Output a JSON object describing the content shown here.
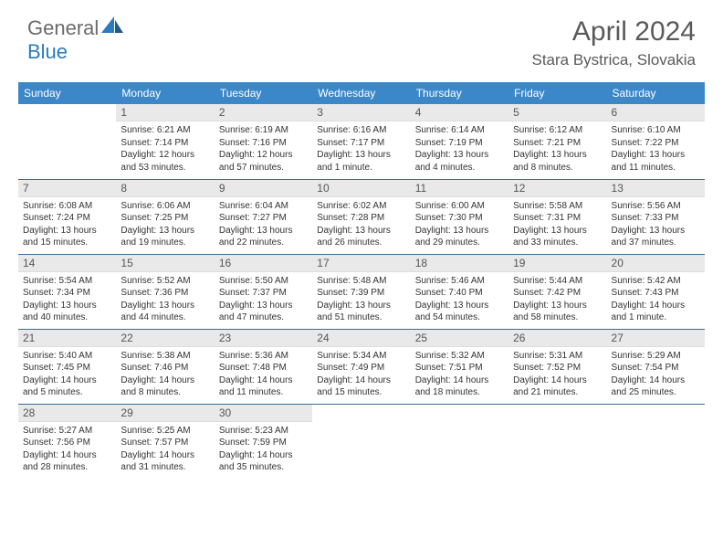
{
  "brand": {
    "part1": "General",
    "part2": "Blue"
  },
  "title": "April 2024",
  "location": "Stara Bystrica, Slovakia",
  "colors": {
    "header_bg": "#3b87c8",
    "header_text": "#ffffff",
    "daynum_bg": "#e9e9e9",
    "row_border": "#3b6a9a",
    "title_color": "#5a5a5a",
    "body_text": "#333333",
    "logo_gray": "#6b6b6b",
    "logo_blue": "#2c7ac0",
    "page_bg": "#ffffff"
  },
  "weekdays": [
    "Sunday",
    "Monday",
    "Tuesday",
    "Wednesday",
    "Thursday",
    "Friday",
    "Saturday"
  ],
  "weeks": [
    [
      {
        "n": "",
        "sr": "",
        "ss": "",
        "dl": "",
        "empty": true
      },
      {
        "n": "1",
        "sr": "Sunrise: 6:21 AM",
        "ss": "Sunset: 7:14 PM",
        "dl": "Daylight: 12 hours and 53 minutes."
      },
      {
        "n": "2",
        "sr": "Sunrise: 6:19 AM",
        "ss": "Sunset: 7:16 PM",
        "dl": "Daylight: 12 hours and 57 minutes."
      },
      {
        "n": "3",
        "sr": "Sunrise: 6:16 AM",
        "ss": "Sunset: 7:17 PM",
        "dl": "Daylight: 13 hours and 1 minute."
      },
      {
        "n": "4",
        "sr": "Sunrise: 6:14 AM",
        "ss": "Sunset: 7:19 PM",
        "dl": "Daylight: 13 hours and 4 minutes."
      },
      {
        "n": "5",
        "sr": "Sunrise: 6:12 AM",
        "ss": "Sunset: 7:21 PM",
        "dl": "Daylight: 13 hours and 8 minutes."
      },
      {
        "n": "6",
        "sr": "Sunrise: 6:10 AM",
        "ss": "Sunset: 7:22 PM",
        "dl": "Daylight: 13 hours and 11 minutes."
      }
    ],
    [
      {
        "n": "7",
        "sr": "Sunrise: 6:08 AM",
        "ss": "Sunset: 7:24 PM",
        "dl": "Daylight: 13 hours and 15 minutes."
      },
      {
        "n": "8",
        "sr": "Sunrise: 6:06 AM",
        "ss": "Sunset: 7:25 PM",
        "dl": "Daylight: 13 hours and 19 minutes."
      },
      {
        "n": "9",
        "sr": "Sunrise: 6:04 AM",
        "ss": "Sunset: 7:27 PM",
        "dl": "Daylight: 13 hours and 22 minutes."
      },
      {
        "n": "10",
        "sr": "Sunrise: 6:02 AM",
        "ss": "Sunset: 7:28 PM",
        "dl": "Daylight: 13 hours and 26 minutes."
      },
      {
        "n": "11",
        "sr": "Sunrise: 6:00 AM",
        "ss": "Sunset: 7:30 PM",
        "dl": "Daylight: 13 hours and 29 minutes."
      },
      {
        "n": "12",
        "sr": "Sunrise: 5:58 AM",
        "ss": "Sunset: 7:31 PM",
        "dl": "Daylight: 13 hours and 33 minutes."
      },
      {
        "n": "13",
        "sr": "Sunrise: 5:56 AM",
        "ss": "Sunset: 7:33 PM",
        "dl": "Daylight: 13 hours and 37 minutes."
      }
    ],
    [
      {
        "n": "14",
        "sr": "Sunrise: 5:54 AM",
        "ss": "Sunset: 7:34 PM",
        "dl": "Daylight: 13 hours and 40 minutes."
      },
      {
        "n": "15",
        "sr": "Sunrise: 5:52 AM",
        "ss": "Sunset: 7:36 PM",
        "dl": "Daylight: 13 hours and 44 minutes."
      },
      {
        "n": "16",
        "sr": "Sunrise: 5:50 AM",
        "ss": "Sunset: 7:37 PM",
        "dl": "Daylight: 13 hours and 47 minutes."
      },
      {
        "n": "17",
        "sr": "Sunrise: 5:48 AM",
        "ss": "Sunset: 7:39 PM",
        "dl": "Daylight: 13 hours and 51 minutes."
      },
      {
        "n": "18",
        "sr": "Sunrise: 5:46 AM",
        "ss": "Sunset: 7:40 PM",
        "dl": "Daylight: 13 hours and 54 minutes."
      },
      {
        "n": "19",
        "sr": "Sunrise: 5:44 AM",
        "ss": "Sunset: 7:42 PM",
        "dl": "Daylight: 13 hours and 58 minutes."
      },
      {
        "n": "20",
        "sr": "Sunrise: 5:42 AM",
        "ss": "Sunset: 7:43 PM",
        "dl": "Daylight: 14 hours and 1 minute."
      }
    ],
    [
      {
        "n": "21",
        "sr": "Sunrise: 5:40 AM",
        "ss": "Sunset: 7:45 PM",
        "dl": "Daylight: 14 hours and 5 minutes."
      },
      {
        "n": "22",
        "sr": "Sunrise: 5:38 AM",
        "ss": "Sunset: 7:46 PM",
        "dl": "Daylight: 14 hours and 8 minutes."
      },
      {
        "n": "23",
        "sr": "Sunrise: 5:36 AM",
        "ss": "Sunset: 7:48 PM",
        "dl": "Daylight: 14 hours and 11 minutes."
      },
      {
        "n": "24",
        "sr": "Sunrise: 5:34 AM",
        "ss": "Sunset: 7:49 PM",
        "dl": "Daylight: 14 hours and 15 minutes."
      },
      {
        "n": "25",
        "sr": "Sunrise: 5:32 AM",
        "ss": "Sunset: 7:51 PM",
        "dl": "Daylight: 14 hours and 18 minutes."
      },
      {
        "n": "26",
        "sr": "Sunrise: 5:31 AM",
        "ss": "Sunset: 7:52 PM",
        "dl": "Daylight: 14 hours and 21 minutes."
      },
      {
        "n": "27",
        "sr": "Sunrise: 5:29 AM",
        "ss": "Sunset: 7:54 PM",
        "dl": "Daylight: 14 hours and 25 minutes."
      }
    ],
    [
      {
        "n": "28",
        "sr": "Sunrise: 5:27 AM",
        "ss": "Sunset: 7:56 PM",
        "dl": "Daylight: 14 hours and 28 minutes."
      },
      {
        "n": "29",
        "sr": "Sunrise: 5:25 AM",
        "ss": "Sunset: 7:57 PM",
        "dl": "Daylight: 14 hours and 31 minutes."
      },
      {
        "n": "30",
        "sr": "Sunrise: 5:23 AM",
        "ss": "Sunset: 7:59 PM",
        "dl": "Daylight: 14 hours and 35 minutes."
      },
      {
        "n": "",
        "sr": "",
        "ss": "",
        "dl": "",
        "empty": true
      },
      {
        "n": "",
        "sr": "",
        "ss": "",
        "dl": "",
        "empty": true
      },
      {
        "n": "",
        "sr": "",
        "ss": "",
        "dl": "",
        "empty": true
      },
      {
        "n": "",
        "sr": "",
        "ss": "",
        "dl": "",
        "empty": true
      }
    ]
  ]
}
